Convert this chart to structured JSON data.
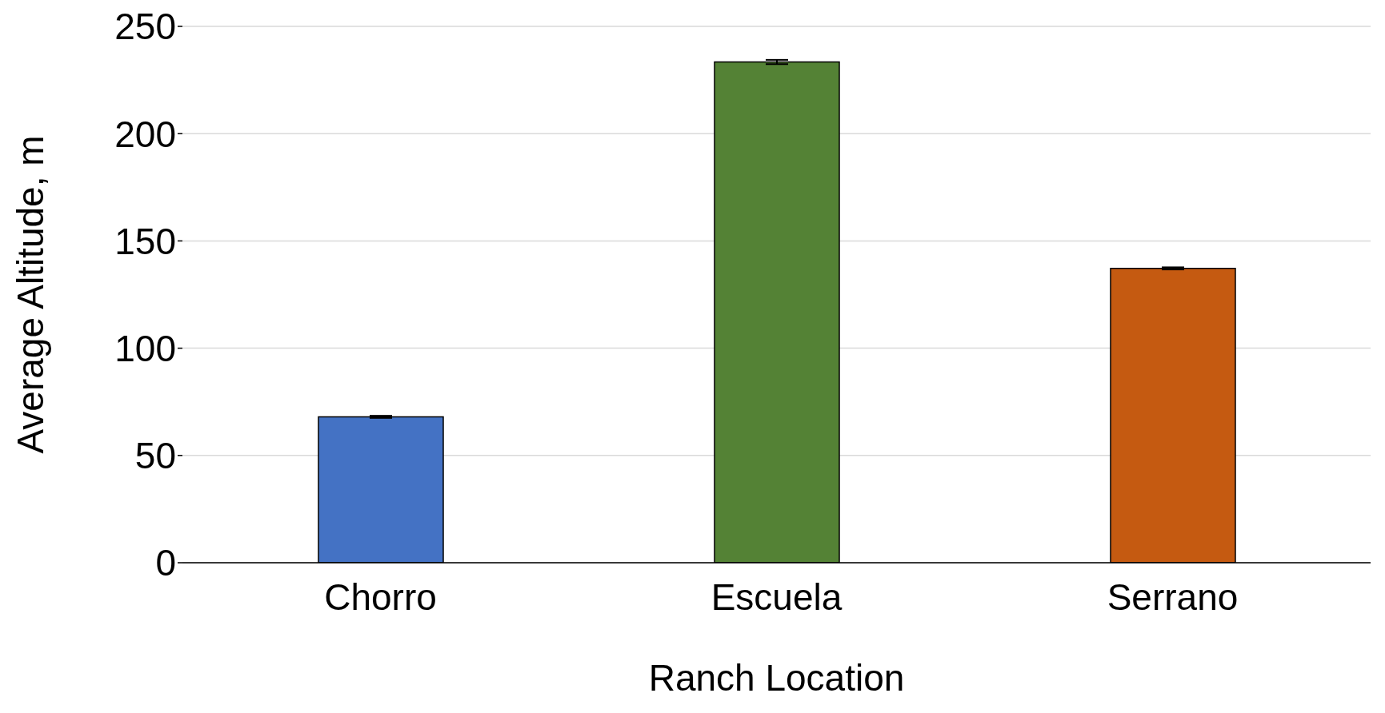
{
  "chart_data": {
    "type": "bar",
    "xlabel": "Ranch Location",
    "ylabel": "Average Altitude, m",
    "categories": [
      "Chorro",
      "Escuela",
      "Serrano"
    ],
    "values": [
      68,
      233.4,
      137.2
    ],
    "errors": [
      0.5,
      1,
      0.5
    ],
    "colors": [
      "#4472c4",
      "#548235",
      "#c55a11"
    ],
    "ylim": [
      0,
      250
    ],
    "yticks": [
      0,
      50,
      100,
      150,
      200,
      250
    ],
    "grid": "y",
    "legend": false
  }
}
